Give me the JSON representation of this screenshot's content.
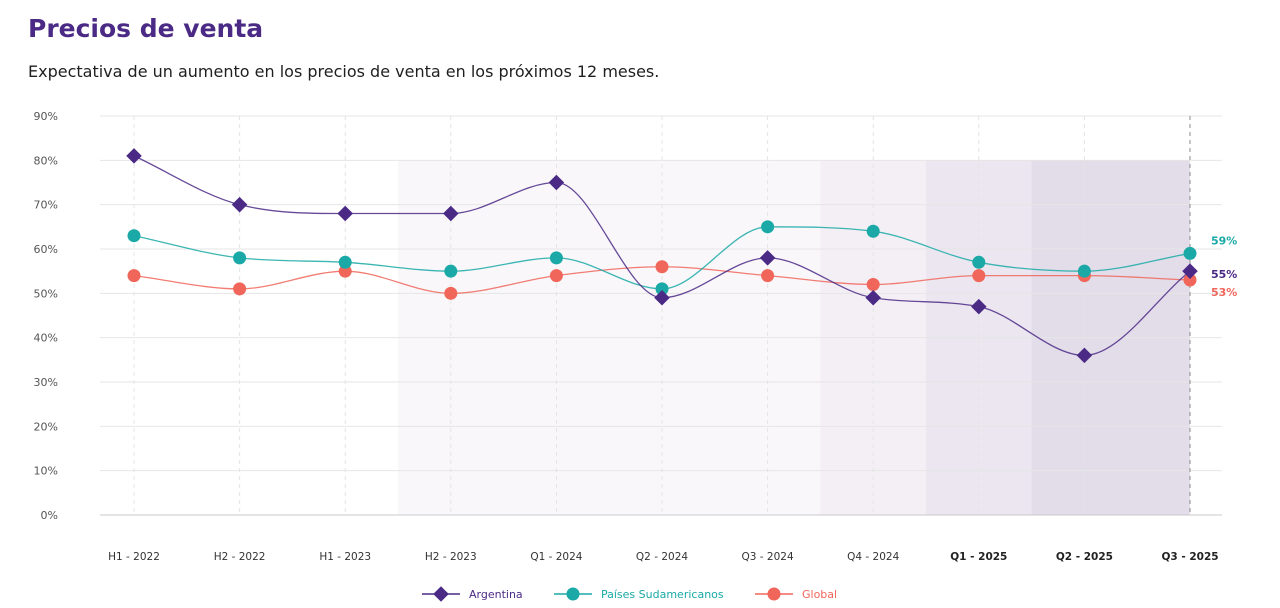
{
  "header": {
    "title": "Precios de venta",
    "subtitle": "Expectativa de un aumento en los precios de venta en los próximos 12 meses."
  },
  "chart_data": {
    "type": "line",
    "categories": [
      "H1 - 2022",
      "H2 - 2022",
      "H1 - 2023",
      "H2 - 2023",
      "Q1 - 2024",
      "Q2 - 2024",
      "Q3 - 2024",
      "Q4 - 2024",
      "Q1 - 2025",
      "Q2 - 2025",
      "Q3 - 2025"
    ],
    "bold_categories": [
      "Q1 - 2025",
      "Q2 - 2025",
      "Q3 - 2025"
    ],
    "ylim": [
      0,
      90
    ],
    "yticks": [
      "0%",
      "10%",
      "20%",
      "30%",
      "40%",
      "50%",
      "60%",
      "70%",
      "80%",
      "90%"
    ],
    "grid": true,
    "legend_position": "bottom",
    "shaded_regions": [
      {
        "from": "H2 - 2023",
        "to": "Q3 - 2025",
        "top": 80,
        "shade": "light"
      },
      {
        "from": "Q4 - 2024",
        "to": "Q3 - 2025",
        "top": 80,
        "shade": "medium"
      },
      {
        "from": "Q1 - 2025",
        "to": "Q3 - 2025",
        "top": 80,
        "shade": "darker"
      },
      {
        "from": "Q2 - 2025",
        "to": "Q3 - 2025",
        "top": 80,
        "shade": "darkest"
      }
    ],
    "series": [
      {
        "name": "Argentina",
        "color": "#4b2a86",
        "values": [
          81,
          70,
          68,
          68,
          75,
          49,
          58,
          49,
          47,
          36,
          55
        ],
        "end_label": "55%"
      },
      {
        "name": "Países Sudamericanos",
        "color": "#1aa9a6",
        "values": [
          63,
          58,
          57,
          55,
          58,
          51,
          65,
          64,
          57,
          55,
          59
        ],
        "end_label": "59%"
      },
      {
        "name": "Global",
        "color": "#f0665a",
        "values": [
          54,
          51,
          55,
          50,
          54,
          56,
          54,
          52,
          54,
          54,
          53
        ],
        "end_label": "53%"
      }
    ]
  }
}
